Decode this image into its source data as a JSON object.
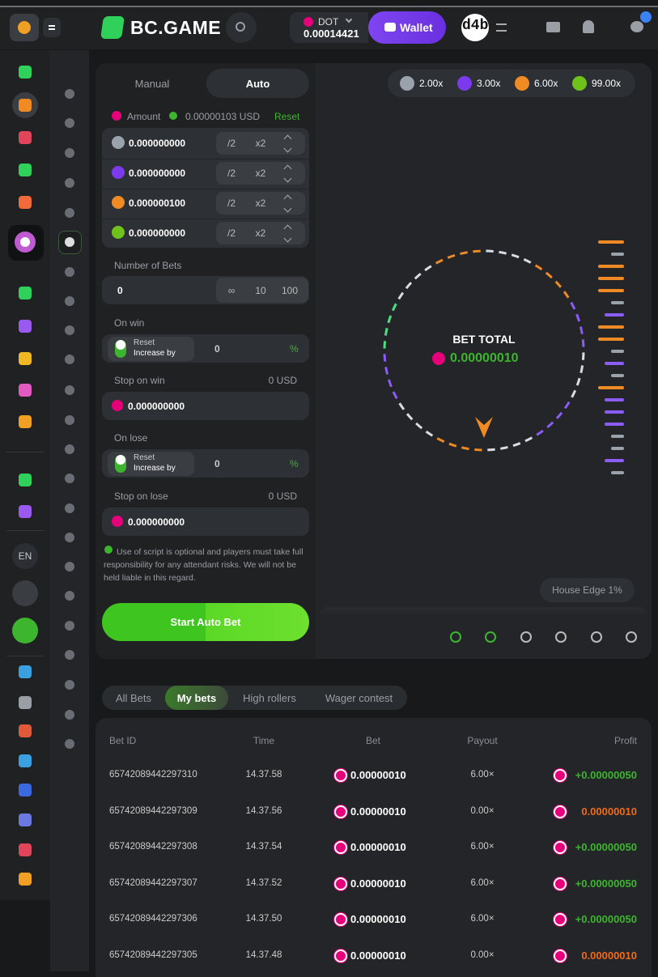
{
  "header": {
    "logo": "BC.GAME",
    "currency": "DOT",
    "balance": "0.00014421",
    "wallet": "Wallet",
    "avatar": "d4b"
  },
  "mode_tabs": [
    "Manual",
    "Auto"
  ],
  "amount": {
    "label": "Amount",
    "usd": "0.00000103 USD",
    "reset": "Reset"
  },
  "bets": [
    {
      "color": "#9aa2ab",
      "amount": "0.000000000"
    },
    {
      "color": "#7c3aed",
      "amount": "0.000000000"
    },
    {
      "color": "#f08a24",
      "amount": "0.000000100"
    },
    {
      "color": "#6fc21a",
      "amount": "0.000000000"
    }
  ],
  "bet_buttons": [
    "/2",
    "x2"
  ],
  "multipliers": [
    {
      "label": "2.00x",
      "color": "#9aa2ab"
    },
    {
      "label": "3.00x",
      "color": "#7c3aed"
    },
    {
      "label": "6.00x",
      "color": "#f08a24"
    },
    {
      "label": "99.00x",
      "color": "#6fc21a"
    }
  ],
  "number_of_bets": {
    "label": "Number of Bets",
    "value": "0",
    "options": [
      "∞",
      "10",
      "100"
    ]
  },
  "on_win": {
    "label": "On win",
    "toggle_top": "Reset",
    "toggle_bottom": "Increase by",
    "value": "0",
    "unit": "%"
  },
  "stop_on_win": {
    "label": "Stop on win",
    "usd": "0 USD",
    "value": "0.000000000"
  },
  "on_lose": {
    "label": "On lose",
    "toggle_top": "Reset",
    "toggle_bottom": "Increase by",
    "value": "0",
    "unit": "%"
  },
  "stop_on_lose": {
    "label": "Stop on lose",
    "usd": "0 USD",
    "value": "0.000000000"
  },
  "disclaimer": "Use of script is optional and players must take full responsibility for any attendant risks. We will not be held liable in this regard.",
  "start_button": "Start Auto Bet",
  "bet_total": {
    "label": "BET TOTAL",
    "value": "0.00000010"
  },
  "house_edge": "House Edge 1%",
  "language": "EN",
  "bet_tabs": [
    "All Bets",
    "My bets",
    "High rollers",
    "Wager contest"
  ],
  "table": {
    "columns": [
      "Bet ID",
      "Time",
      "Bet",
      "Payout",
      "Profit"
    ],
    "rows": [
      [
        "65742089442297310",
        "14.37.58",
        "0.00000010",
        "6.00×",
        "+0.00000050"
      ],
      [
        "65742089442297309",
        "14.37.56",
        "0.00000010",
        "0.00×",
        "0.00000010"
      ],
      [
        "65742089442297308",
        "14.37.54",
        "0.00000010",
        "6.00×",
        "+0.00000050"
      ],
      [
        "65742089442297307",
        "14.37.52",
        "0.00000010",
        "6.00×",
        "+0.00000050"
      ],
      [
        "65742089442297306",
        "14.37.50",
        "0.00000010",
        "6.00×",
        "+0.00000050"
      ],
      [
        "65742089442297305",
        "14.37.48",
        "0.00000010",
        "0.00×",
        "0.00000010"
      ]
    ]
  }
}
